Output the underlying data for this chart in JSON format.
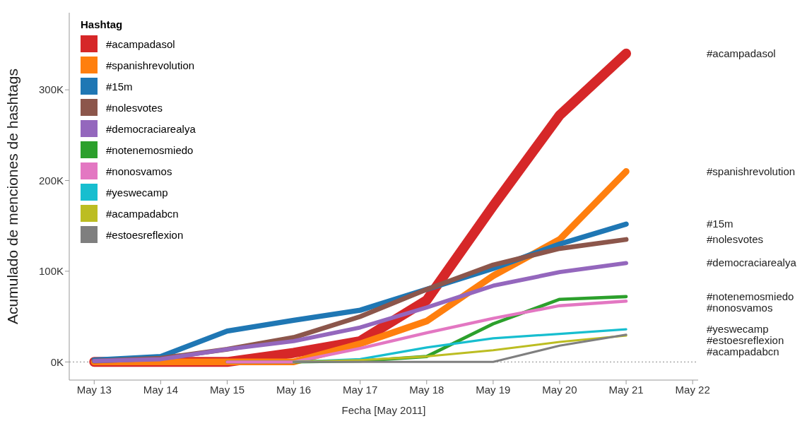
{
  "chart_data": {
    "type": "line",
    "xlabel": "Fecha [May 2011]",
    "ylabel": "Acumulado de menciones de hashtags",
    "legend_title": "Hashtag",
    "legend": "top left",
    "grid": false,
    "marker": "none",
    "line_style": "solid",
    "x": [
      "2011-05-13",
      "2011-05-14",
      "2011-05-15",
      "2011-05-16",
      "2011-05-17",
      "2011-05-18",
      "2011-05-19",
      "2011-05-20",
      "2011-05-21"
    ],
    "xlim": [
      "2011-05-12T15:00",
      "2011-05-22T02:00"
    ],
    "xticks": [
      {
        "value": "2011-05-13",
        "label": "May 13"
      },
      {
        "value": "2011-05-14",
        "label": "May 14"
      },
      {
        "value": "2011-05-15",
        "label": "May 15"
      },
      {
        "value": "2011-05-16",
        "label": "May 16"
      },
      {
        "value": "2011-05-17",
        "label": "May 17"
      },
      {
        "value": "2011-05-18",
        "label": "May 18"
      },
      {
        "value": "2011-05-19",
        "label": "May 19"
      },
      {
        "value": "2011-05-20",
        "label": "May 20"
      },
      {
        "value": "2011-05-21",
        "label": "May 21"
      },
      {
        "value": "2011-05-22",
        "label": "May 22"
      }
    ],
    "ylim": [
      -20000,
      385000
    ],
    "yticks": [
      {
        "value": 0,
        "label": "0K"
      },
      {
        "value": 100000,
        "label": "100K"
      },
      {
        "value": 200000,
        "label": "200K"
      },
      {
        "value": 300000,
        "label": "300K"
      }
    ],
    "ref_lines": [
      {
        "axis": "y",
        "value": 0,
        "color": "#888888",
        "line_style": "dotted"
      }
    ],
    "series": [
      {
        "name": "#acampadasol",
        "color": "#d62728",
        "values": [
          0,
          0,
          0,
          10000,
          23000,
          68000,
          172000,
          272000,
          340000
        ]
      },
      {
        "name": "#spanishrevolution",
        "color": "#ff7f0e",
        "values": [
          0,
          0,
          0,
          0,
          20000,
          45000,
          95000,
          135000,
          210000
        ]
      },
      {
        "name": "#15m",
        "color": "#1f77b4",
        "values": [
          2000,
          6000,
          34000,
          46000,
          57000,
          80000,
          103000,
          130000,
          152000
        ]
      },
      {
        "name": "#nolesvotes",
        "color": "#8c564b",
        "values": [
          1000,
          4000,
          14000,
          27000,
          50000,
          80000,
          107000,
          125000,
          135000
        ]
      },
      {
        "name": "#democraciarealya",
        "color": "#9467bd",
        "values": [
          1000,
          3000,
          14000,
          23000,
          38000,
          60000,
          84000,
          99000,
          109000
        ]
      },
      {
        "name": "#notenemosmiedo",
        "color": "#2ca02c",
        "values": [
          null,
          null,
          0,
          0,
          1000,
          6000,
          42000,
          69000,
          72000
        ]
      },
      {
        "name": "#nonosvamos",
        "color": "#e377c2",
        "values": [
          null,
          null,
          0,
          0,
          15000,
          32000,
          48000,
          62000,
          67000
        ]
      },
      {
        "name": "#yeswecamp",
        "color": "#17becf",
        "values": [
          null,
          null,
          null,
          0,
          3000,
          16000,
          26000,
          31000,
          36000
        ]
      },
      {
        "name": "#acampadabcn",
        "color": "#bcbd22",
        "values": [
          null,
          null,
          null,
          0,
          2000,
          6000,
          13000,
          22000,
          29000
        ]
      },
      {
        "name": "#estoesreflexion",
        "color": "#7f7f7f",
        "values": [
          null,
          null,
          null,
          0,
          0,
          0,
          0,
          18000,
          30000
        ]
      }
    ]
  }
}
